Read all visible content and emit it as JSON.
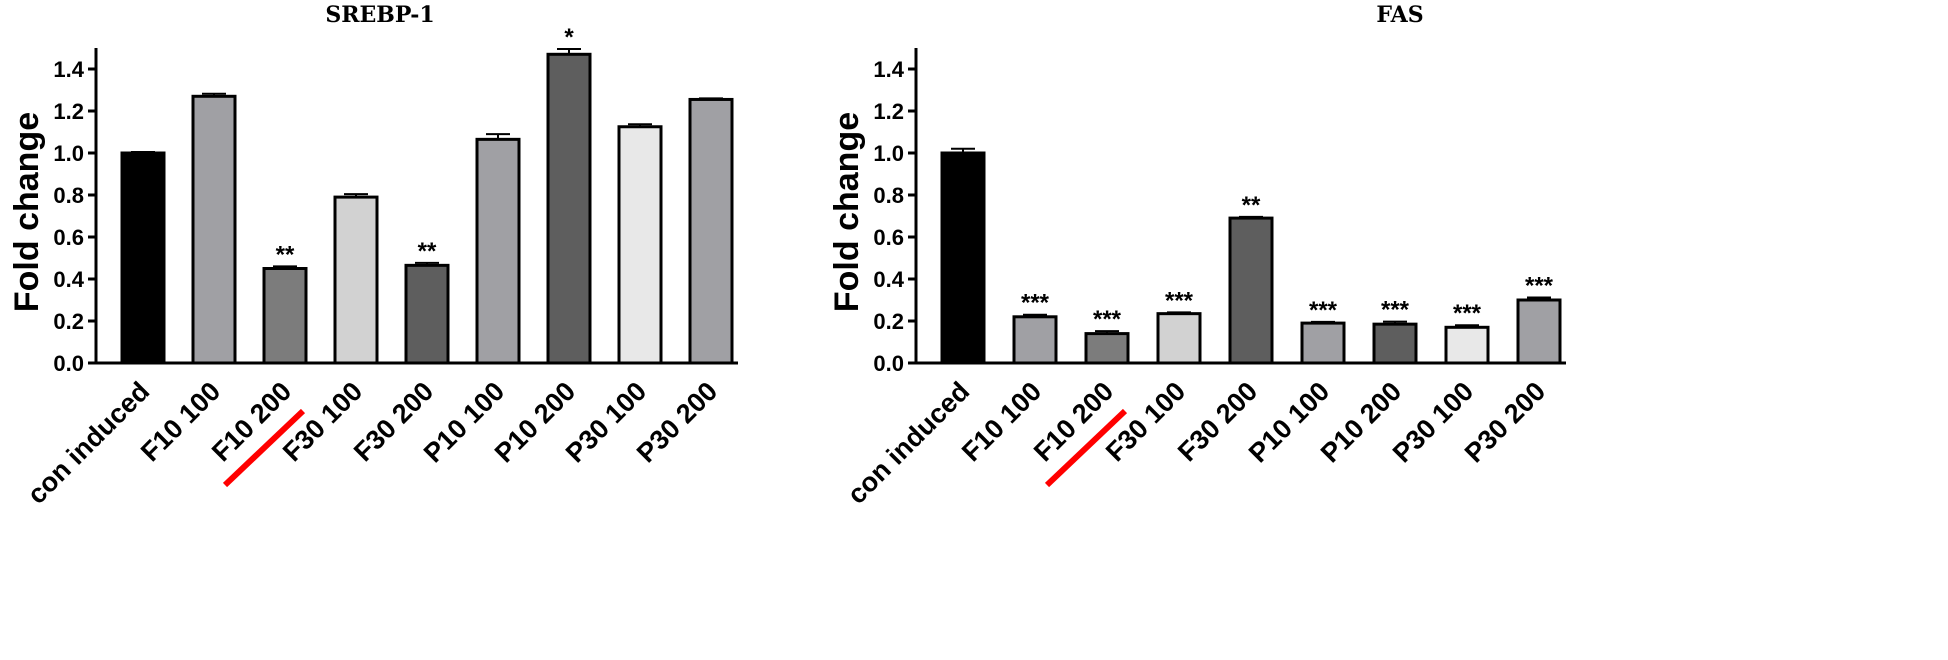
{
  "chart_data": [
    {
      "type": "bar",
      "title": "SREBP-1",
      "ylabel": "Fold change",
      "xlabel": "",
      "ylim": [
        0,
        1.5
      ],
      "yticks": [
        "0.0",
        "0.2",
        "0.4",
        "0.6",
        "0.8",
        "1.0",
        "1.2",
        "1.4"
      ],
      "categories": [
        "con induced",
        "F10 100",
        "F10 200",
        "F30 100",
        "F30 200",
        "P10 100",
        "P10 200",
        "P30 100",
        "P30 200"
      ],
      "values": [
        1.0,
        1.27,
        0.45,
        0.79,
        0.465,
        1.065,
        1.47,
        1.125,
        1.255
      ],
      "errors": [
        0.005,
        0.012,
        0.01,
        0.014,
        0.012,
        0.025,
        0.025,
        0.012,
        0.005
      ],
      "significance": [
        "",
        "",
        "**",
        "",
        "**",
        "",
        "*",
        "",
        ""
      ],
      "colors": [
        "#000000",
        "#a0a0a4",
        "#7c7c7c",
        "#d2d2d2",
        "#5e5e5e",
        "#a0a0a4",
        "#5e5e5e",
        "#e8e8e8",
        "#a0a0a4"
      ],
      "highlight": "F10 200",
      "highlight_color": "#ff0000"
    },
    {
      "type": "bar",
      "title": "FAS",
      "ylabel": "Fold change",
      "xlabel": "",
      "ylim": [
        0,
        1.5
      ],
      "yticks": [
        "0.0",
        "0.2",
        "0.4",
        "0.6",
        "0.8",
        "1.0",
        "1.2",
        "1.4"
      ],
      "categories": [
        "con induced",
        "F10 100",
        "F10 200",
        "F30 100",
        "F30 200",
        "P10 100",
        "P10 200",
        "P30 100",
        "P30 200"
      ],
      "values": [
        1.0,
        0.22,
        0.14,
        0.235,
        0.69,
        0.19,
        0.185,
        0.17,
        0.3
      ],
      "errors": [
        0.02,
        0.01,
        0.012,
        0.006,
        0.006,
        0.006,
        0.012,
        0.01,
        0.012
      ],
      "significance": [
        "",
        "***",
        "***",
        "***",
        "**",
        "***",
        "***",
        "***",
        "***"
      ],
      "colors": [
        "#000000",
        "#a0a0a4",
        "#7c7c7c",
        "#d2d2d2",
        "#5e5e5e",
        "#a0a0a4",
        "#5e5e5e",
        "#e8e8e8",
        "#a0a0a4"
      ],
      "highlight": "F10 200",
      "highlight_color": "#ff0000"
    }
  ]
}
